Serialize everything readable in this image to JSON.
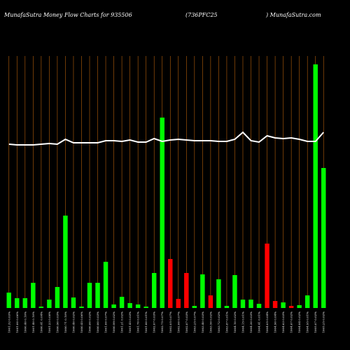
{
  "chart_data": {
    "type": "bar",
    "title": "MunafaSutra  Money Flow  Charts for 935506",
    "subtitle": "(736PFC25",
    "source": ") MunafaSutra.com",
    "categories": [
      "1001.32 0.03%",
      "1001.00 0.06%",
      "1000.40 0.10%",
      "1001.40 0.10%",
      "1000.41 0.04%",
      "1001.23 0.08%",
      "1000.90 0.03%",
      "1000.71 0.10%",
      "1000.40 0.02%",
      "1000.45 0.06%",
      "1000.60 0.02%",
      "1000.80 0.03%",
      "1001.00 0.07%",
      "1000.99 0.02%",
      "1001.21 0.02%",
      "1001.45 0.03%",
      "1001.70 0.01%",
      "1001.80 0.01%",
      "1002.07 0.03%",
      "1002.75 0.07%",
      "1002.05 0.07%",
      "1002.00 0.07%",
      "1002.07 0.03%",
      "1003.25 0.07%",
      "1003.40 0.03%",
      "1003.50 0.02%",
      "1003.72 0.02%",
      "1003.87 0.01%",
      "1004.10 0.02%",
      "1004.15 0.01%",
      "1004.30 0.03%",
      "1004.41 0.01%",
      "1004.05 0.04%",
      "1004.90 0.04%",
      "1004.63 0.03%",
      "1004.67 0.02%",
      "1004.84 0.02%",
      "1004.95 0.01%",
      "1005.07 0.02%",
      "1005.25 0.02%"
    ],
    "values": [
      22,
      14,
      14,
      36,
      2,
      12,
      30,
      132,
      15,
      2,
      36,
      36,
      66,
      5,
      16,
      7,
      5,
      2,
      50,
      272,
      70,
      13,
      50,
      3,
      48,
      18,
      41,
      3,
      47,
      12,
      12,
      6,
      92,
      10,
      8,
      3,
      4,
      18,
      348,
      200
    ],
    "colors": [
      "#00ff00",
      "#00ff00",
      "#00ff00",
      "#00ff00",
      "#00ff00",
      "#00ff00",
      "#00ff00",
      "#00ff00",
      "#00ff00",
      "#00ff00",
      "#00ff00",
      "#00ff00",
      "#00ff00",
      "#00ff00",
      "#00ff00",
      "#00ff00",
      "#00ff00",
      "#00ff00",
      "#00ff00",
      "#00ff00",
      "#ff0000",
      "#ff0000",
      "#ff0000",
      "#00ff00",
      "#00ff00",
      "#ff0000",
      "#00ff00",
      "#00ff00",
      "#00ff00",
      "#00ff00",
      "#00ff00",
      "#00ff00",
      "#ff0000",
      "#ff0000",
      "#00ff00",
      "#ff0000",
      "#00ff00",
      "#00ff00",
      "#00ff00",
      "#00ff00"
    ],
    "line": {
      "color": "#ffffff",
      "values": [
        234,
        233,
        233,
        233,
        234,
        235,
        234,
        241,
        236,
        236,
        236,
        236,
        239,
        239,
        238,
        240,
        237,
        237,
        242,
        238,
        240,
        241,
        240,
        239,
        239,
        239,
        238,
        238,
        241,
        251,
        239,
        237,
        246,
        243,
        242,
        243,
        241,
        238,
        238,
        251
      ]
    },
    "ylim": [
      0,
      360
    ],
    "grid": true,
    "grid_color": "#b8600b"
  }
}
